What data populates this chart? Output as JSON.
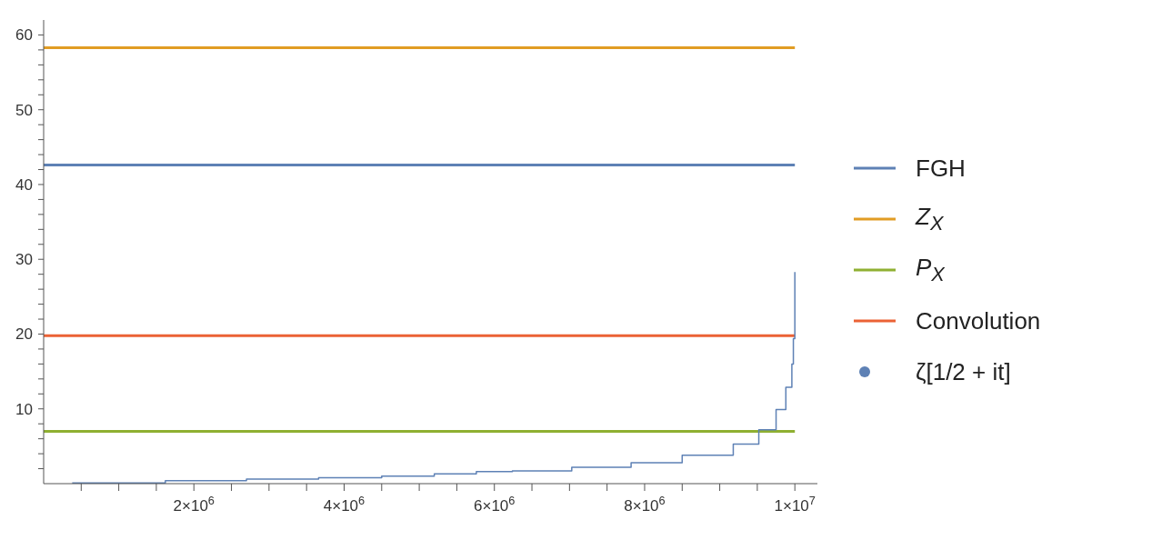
{
  "chart_data": {
    "type": "line",
    "xlim": [
      0,
      10300000
    ],
    "ylim": [
      0,
      62
    ],
    "xticks": [
      {
        "value": 500000,
        "label": null
      },
      {
        "value": 1000000,
        "label": null
      },
      {
        "value": 1500000,
        "label": null
      },
      {
        "value": 2000000,
        "label": "2×10$^{6}$"
      },
      {
        "value": 2500000,
        "label": null
      },
      {
        "value": 3000000,
        "label": null
      },
      {
        "value": 3500000,
        "label": null
      },
      {
        "value": 4000000,
        "label": "4×10$^{6}$"
      },
      {
        "value": 4500000,
        "label": null
      },
      {
        "value": 5000000,
        "label": null
      },
      {
        "value": 5500000,
        "label": null
      },
      {
        "value": 6000000,
        "label": "6×10$^{6}$"
      },
      {
        "value": 6500000,
        "label": null
      },
      {
        "value": 7000000,
        "label": null
      },
      {
        "value": 7500000,
        "label": null
      },
      {
        "value": 8000000,
        "label": "8×10$^{6}$"
      },
      {
        "value": 8500000,
        "label": null
      },
      {
        "value": 9000000,
        "label": null
      },
      {
        "value": 9500000,
        "label": null
      },
      {
        "value": 10000000,
        "label": "1×10$^{7}$"
      }
    ],
    "yticks": [
      {
        "value": 2,
        "label": null
      },
      {
        "value": 4,
        "label": null
      },
      {
        "value": 6,
        "label": null
      },
      {
        "value": 8,
        "label": null
      },
      10,
      {
        "value": 12,
        "label": null
      },
      {
        "value": 14,
        "label": null
      },
      {
        "value": 16,
        "label": null
      },
      {
        "value": 18,
        "label": null
      },
      20,
      {
        "value": 22,
        "label": null
      },
      {
        "value": 24,
        "label": null
      },
      {
        "value": 26,
        "label": null
      },
      {
        "value": 28,
        "label": null
      },
      30,
      {
        "value": 32,
        "label": null
      },
      {
        "value": 34,
        "label": null
      },
      {
        "value": 36,
        "label": null
      },
      {
        "value": 38,
        "label": null
      },
      40,
      {
        "value": 42,
        "label": null
      },
      {
        "value": 44,
        "label": null
      },
      {
        "value": 46,
        "label": null
      },
      {
        "value": 48,
        "label": null
      },
      50,
      {
        "value": 52,
        "label": null
      },
      {
        "value": 54,
        "label": null
      },
      {
        "value": 56,
        "label": null
      },
      {
        "value": 58,
        "label": null
      },
      60
    ],
    "grid": false,
    "legend": "right",
    "series": [
      {
        "name": "FGH",
        "color": "#5e81b5",
        "x": [
          0,
          10000000
        ],
        "values": [
          42.6,
          42.6
        ]
      },
      {
        "name": "Z$_{X}$",
        "color": "#e19c24",
        "x": [
          0,
          10000000
        ],
        "values": [
          58.3,
          58.3
        ]
      },
      {
        "name": "P$_{X}$",
        "color": "#8fb032",
        "x": [
          0,
          10000000
        ],
        "values": [
          7.0,
          7.0
        ]
      },
      {
        "name": "Convolution",
        "color": "#eb6235",
        "x": [
          0,
          10000000
        ],
        "values": [
          19.8,
          19.8
        ]
      },
      {
        "name": "ζ[1/2 + it]",
        "type": "step",
        "color": "#5e81b5",
        "x": [
          380000,
          1620000,
          2700000,
          3660000,
          4500000,
          5200000,
          5760000,
          6240000,
          7030000,
          7820000,
          8500000,
          9180000,
          9520000,
          9750000,
          9880000,
          9960000,
          9980000,
          10000000
        ],
        "values": [
          0.1,
          0.4,
          0.6,
          0.8,
          1.0,
          1.3,
          1.6,
          1.7,
          2.2,
          2.8,
          3.8,
          5.3,
          7.2,
          9.9,
          12.9,
          16,
          19.4,
          28.3
        ]
      }
    ]
  }
}
